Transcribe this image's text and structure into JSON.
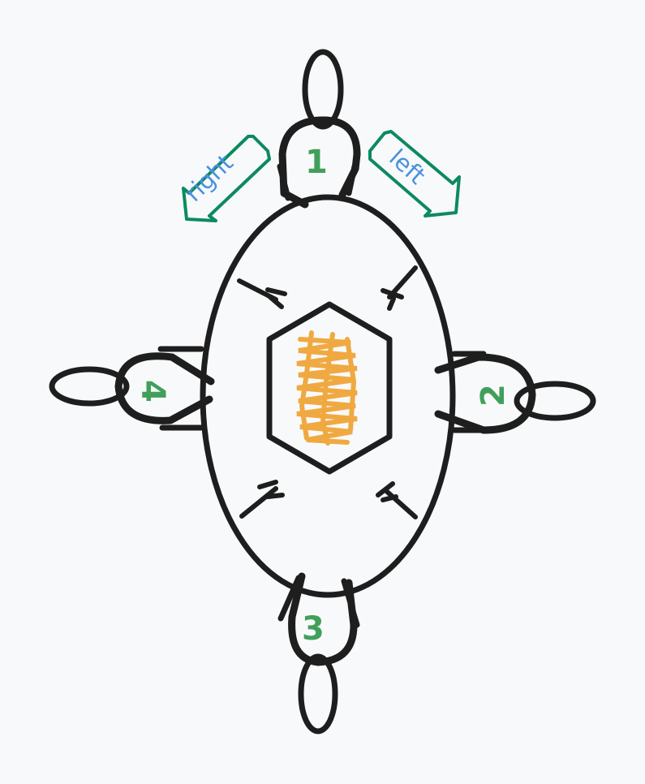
{
  "diagram": {
    "seats": [
      {
        "id": "1",
        "label": "1"
      },
      {
        "id": "2",
        "label": "2"
      },
      {
        "id": "3",
        "label": "3"
      },
      {
        "id": "4",
        "label": "4"
      }
    ],
    "arrows": {
      "right_label": "right",
      "left_label": "left"
    },
    "colors": {
      "ink": "#1e1e1e",
      "seat_number": "#40a05a",
      "arrow_outline": "#0c8a5f",
      "arrow_text": "#4a90e2",
      "food": "#f0a941",
      "background": "#f8f9fa"
    }
  }
}
